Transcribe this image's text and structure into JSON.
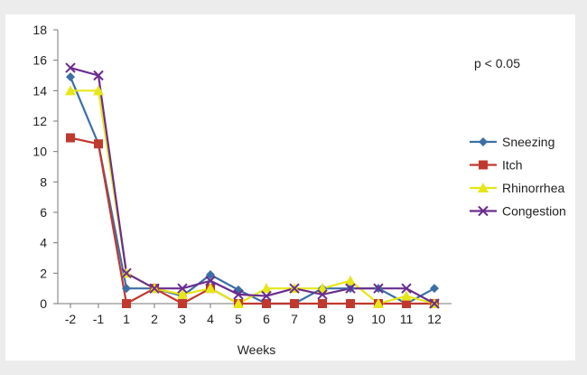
{
  "chart_data": {
    "type": "line",
    "title": "",
    "xlabel": "Weeks",
    "ylabel": "",
    "annotation": "p < 0.05",
    "x": [
      "-2",
      "-1",
      "1",
      "2",
      "3",
      "4",
      "5",
      "6",
      "7",
      "8",
      "9",
      "10",
      "11",
      "12"
    ],
    "ylim": [
      0,
      18
    ],
    "yticks": [
      0,
      2,
      4,
      6,
      8,
      10,
      12,
      14,
      16,
      18
    ],
    "grid": false,
    "legend_position": "right",
    "series": [
      {
        "name": "Sneezing",
        "color": "#3c6fa5",
        "marker": "diamond",
        "values": [
          14.9,
          10.5,
          1.0,
          1.0,
          0.5,
          1.9,
          0.9,
          0.0,
          0.0,
          1.0,
          1.0,
          1.0,
          0.0,
          1.0
        ]
      },
      {
        "name": "Itch",
        "color": "#c0392f",
        "marker": "square",
        "values": [
          10.9,
          10.5,
          0.0,
          1.0,
          0.0,
          1.0,
          0.0,
          0.0,
          0.0,
          0.0,
          0.0,
          0.0,
          0.0,
          0.0
        ]
      },
      {
        "name": "Rhinorrhea",
        "color": "#e6e619",
        "marker": "triangle",
        "values": [
          14.0,
          14.0,
          2.0,
          1.0,
          0.6,
          1.0,
          0.0,
          1.0,
          1.0,
          1.0,
          1.5,
          0.0,
          0.5,
          0.0
        ]
      },
      {
        "name": "Congestion",
        "color": "#6a2d8f",
        "marker": "x",
        "values": [
          15.5,
          15.0,
          2.0,
          1.0,
          1.0,
          1.5,
          0.6,
          0.5,
          1.0,
          0.6,
          1.0,
          1.0,
          1.0,
          0.0
        ]
      }
    ]
  }
}
